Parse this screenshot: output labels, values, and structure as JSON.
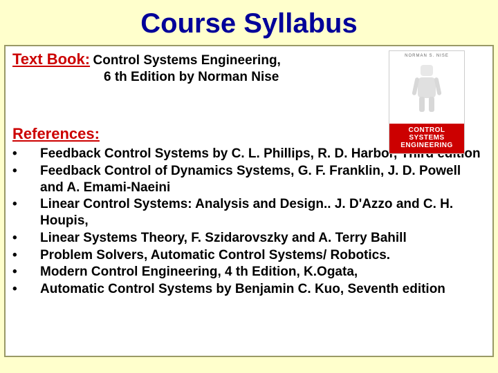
{
  "title": "Course Syllabus",
  "title_color": "#000099",
  "title_fontsize": 40,
  "background_color": "#ffffcc",
  "box_border_color": "#999966",
  "label_color": "#cc0000",
  "text_color": "#000000",
  "textbook": {
    "label": "Text Book:",
    "label_fontsize": 22,
    "title": "Control Systems Engineering,",
    "subtitle": "6 th Edition by Norman  Nise",
    "text_fontsize": 19
  },
  "book_cover": {
    "author": "NORMAN S. NISE",
    "line1": "CONTROL",
    "line2": "SYSTEMS",
    "line3": "ENGINEERING",
    "accent_color": "#cc0000"
  },
  "references": {
    "label": "References:",
    "label_fontsize": 22,
    "item_fontsize": 19,
    "items": [
      "Feedback Control Systems by C. L. Phillips, R. D. Harbor, Third edition",
      "Feedback Control of Dynamics Systems, G. F. Franklin, J. D.  Powell and A. Emami-Naeini",
      "Linear Control Systems: Analysis and Design.. J. D'Azzo and C. H. Houpis,",
      "Linear Systems Theory, F. Szidarovszky and A. Terry Bahill",
      "Problem Solvers, Automatic Control Systems/ Robotics.",
      "Modern Control Engineering, 4 th Edition, K.Ogata,",
      "Automatic Control Systems by Benjamin C. Kuo, Seventh edition"
    ]
  }
}
